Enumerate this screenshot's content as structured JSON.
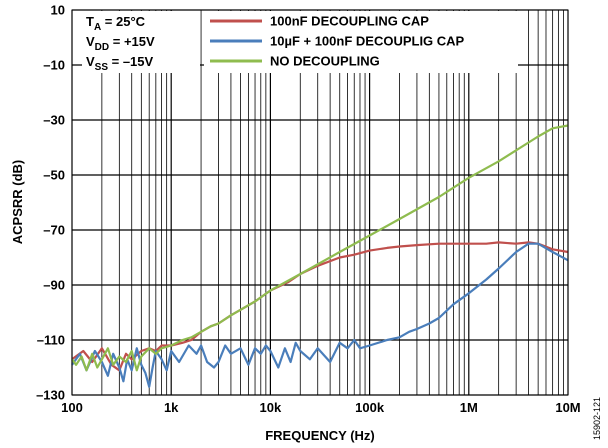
{
  "chart_data": {
    "type": "line",
    "title": "",
    "xlabel": "FREQUENCY (Hz)",
    "ylabel": "ACPSRR (dB)",
    "x_scale": "log",
    "xlim": [
      100,
      10000000
    ],
    "ylim": [
      -130,
      10
    ],
    "x_ticks": [
      100,
      1000,
      10000,
      100000,
      1000000,
      10000000
    ],
    "x_tick_labels": [
      "100",
      "1k",
      "10k",
      "100k",
      "1M",
      "10M"
    ],
    "y_ticks": [
      10,
      -10,
      -30,
      -50,
      -70,
      -90,
      -110,
      -130
    ],
    "y_tick_labels": [
      "10",
      "–10",
      "–30",
      "–50",
      "–70",
      "–90",
      "–110",
      "–130"
    ],
    "grid": true,
    "legend_position": "top-right",
    "conditions": [
      {
        "main": "T",
        "sub": "A",
        "rest": " = 25°C"
      },
      {
        "main": "V",
        "sub": "DD",
        "rest": " = +15V"
      },
      {
        "main": "V",
        "sub": "SS",
        "rest": " = –15V"
      }
    ],
    "figure_id": "15902-121",
    "series": [
      {
        "name": "100nF DECOUPLING CAP",
        "color": "#c0504d",
        "points": [
          [
            100,
            -117
          ],
          [
            130,
            -114
          ],
          [
            160,
            -118
          ],
          [
            200,
            -113
          ],
          [
            250,
            -119
          ],
          [
            300,
            -121
          ],
          [
            350,
            -115
          ],
          [
            400,
            -117
          ],
          [
            500,
            -114
          ],
          [
            600,
            -113
          ],
          [
            700,
            -114
          ],
          [
            800,
            -112
          ],
          [
            1000,
            -112
          ],
          [
            1300,
            -111
          ],
          [
            1600,
            -110
          ],
          [
            2000,
            -107
          ],
          [
            2500,
            -105
          ],
          [
            3000,
            -104
          ],
          [
            4000,
            -101
          ],
          [
            5000,
            -99
          ],
          [
            7000,
            -96
          ],
          [
            10000,
            -92
          ],
          [
            15000,
            -89
          ],
          [
            20000,
            -86
          ],
          [
            30000,
            -83
          ],
          [
            50000,
            -80
          ],
          [
            70000,
            -79
          ],
          [
            100000,
            -77.5
          ],
          [
            150000,
            -76.5
          ],
          [
            200000,
            -76
          ],
          [
            300000,
            -75.5
          ],
          [
            500000,
            -75
          ],
          [
            700000,
            -75
          ],
          [
            1000000,
            -75
          ],
          [
            1500000,
            -75
          ],
          [
            2000000,
            -74.5
          ],
          [
            3000000,
            -75
          ],
          [
            4000000,
            -74.5
          ],
          [
            5000000,
            -75
          ],
          [
            7000000,
            -77
          ],
          [
            10000000,
            -78
          ]
        ]
      },
      {
        "name": "10µF + 100nF DECOUPLIG CAP",
        "color": "#4a7ebb",
        "points": [
          [
            100,
            -119
          ],
          [
            120,
            -115
          ],
          [
            140,
            -121
          ],
          [
            170,
            -114
          ],
          [
            200,
            -118
          ],
          [
            230,
            -123
          ],
          [
            260,
            -115
          ],
          [
            300,
            -120
          ],
          [
            330,
            -125
          ],
          [
            360,
            -117
          ],
          [
            400,
            -121
          ],
          [
            450,
            -113
          ],
          [
            500,
            -119
          ],
          [
            550,
            -122
          ],
          [
            600,
            -127
          ],
          [
            650,
            -120
          ],
          [
            700,
            -114
          ],
          [
            800,
            -117
          ],
          [
            900,
            -121
          ],
          [
            1000,
            -114
          ],
          [
            1200,
            -118
          ],
          [
            1500,
            -112
          ],
          [
            1800,
            -115
          ],
          [
            2000,
            -112
          ],
          [
            2300,
            -118
          ],
          [
            2700,
            -120
          ],
          [
            3000,
            -118
          ],
          [
            3500,
            -112
          ],
          [
            4000,
            -115
          ],
          [
            5000,
            -113
          ],
          [
            6000,
            -119
          ],
          [
            7000,
            -113
          ],
          [
            8000,
            -115
          ],
          [
            9000,
            -112
          ],
          [
            10000,
            -114
          ],
          [
            12000,
            -120
          ],
          [
            14000,
            -113
          ],
          [
            16000,
            -118
          ],
          [
            18000,
            -111
          ],
          [
            20000,
            -114
          ],
          [
            25000,
            -117
          ],
          [
            30000,
            -113
          ],
          [
            40000,
            -118
          ],
          [
            50000,
            -111
          ],
          [
            60000,
            -113
          ],
          [
            70000,
            -110
          ],
          [
            80000,
            -113
          ],
          [
            100000,
            -112
          ],
          [
            150000,
            -110
          ],
          [
            200000,
            -109
          ],
          [
            250000,
            -107
          ],
          [
            300000,
            -106
          ],
          [
            400000,
            -104
          ],
          [
            500000,
            -102
          ],
          [
            700000,
            -97
          ],
          [
            1000000,
            -93
          ],
          [
            1500000,
            -88
          ],
          [
            2000000,
            -84
          ],
          [
            3000000,
            -78
          ],
          [
            4000000,
            -75
          ],
          [
            5000000,
            -75
          ],
          [
            7000000,
            -78
          ],
          [
            10000000,
            -81
          ]
        ]
      },
      {
        "name": "NO DECOUPLING",
        "color": "#8fbc4f",
        "points": [
          [
            100,
            -117
          ],
          [
            110,
            -119
          ],
          [
            125,
            -116
          ],
          [
            140,
            -121
          ],
          [
            160,
            -115
          ],
          [
            180,
            -120
          ],
          [
            200,
            -117
          ],
          [
            230,
            -113
          ],
          [
            260,
            -119
          ],
          [
            300,
            -116
          ],
          [
            350,
            -118
          ],
          [
            400,
            -114
          ],
          [
            450,
            -121
          ],
          [
            500,
            -116
          ],
          [
            600,
            -113
          ],
          [
            700,
            -115
          ],
          [
            800,
            -113
          ],
          [
            1000,
            -112
          ],
          [
            1300,
            -110
          ],
          [
            1600,
            -109
          ],
          [
            2000,
            -107
          ],
          [
            2500,
            -105
          ],
          [
            3000,
            -104
          ],
          [
            4000,
            -101
          ],
          [
            5000,
            -99
          ],
          [
            7000,
            -96
          ],
          [
            10000,
            -92
          ],
          [
            20000,
            -86
          ],
          [
            50000,
            -78
          ],
          [
            100000,
            -72
          ],
          [
            200000,
            -66
          ],
          [
            500000,
            -58
          ],
          [
            1000000,
            -51
          ],
          [
            2000000,
            -45
          ],
          [
            5000000,
            -36
          ],
          [
            7000000,
            -33
          ],
          [
            10000000,
            -32
          ]
        ]
      }
    ]
  }
}
